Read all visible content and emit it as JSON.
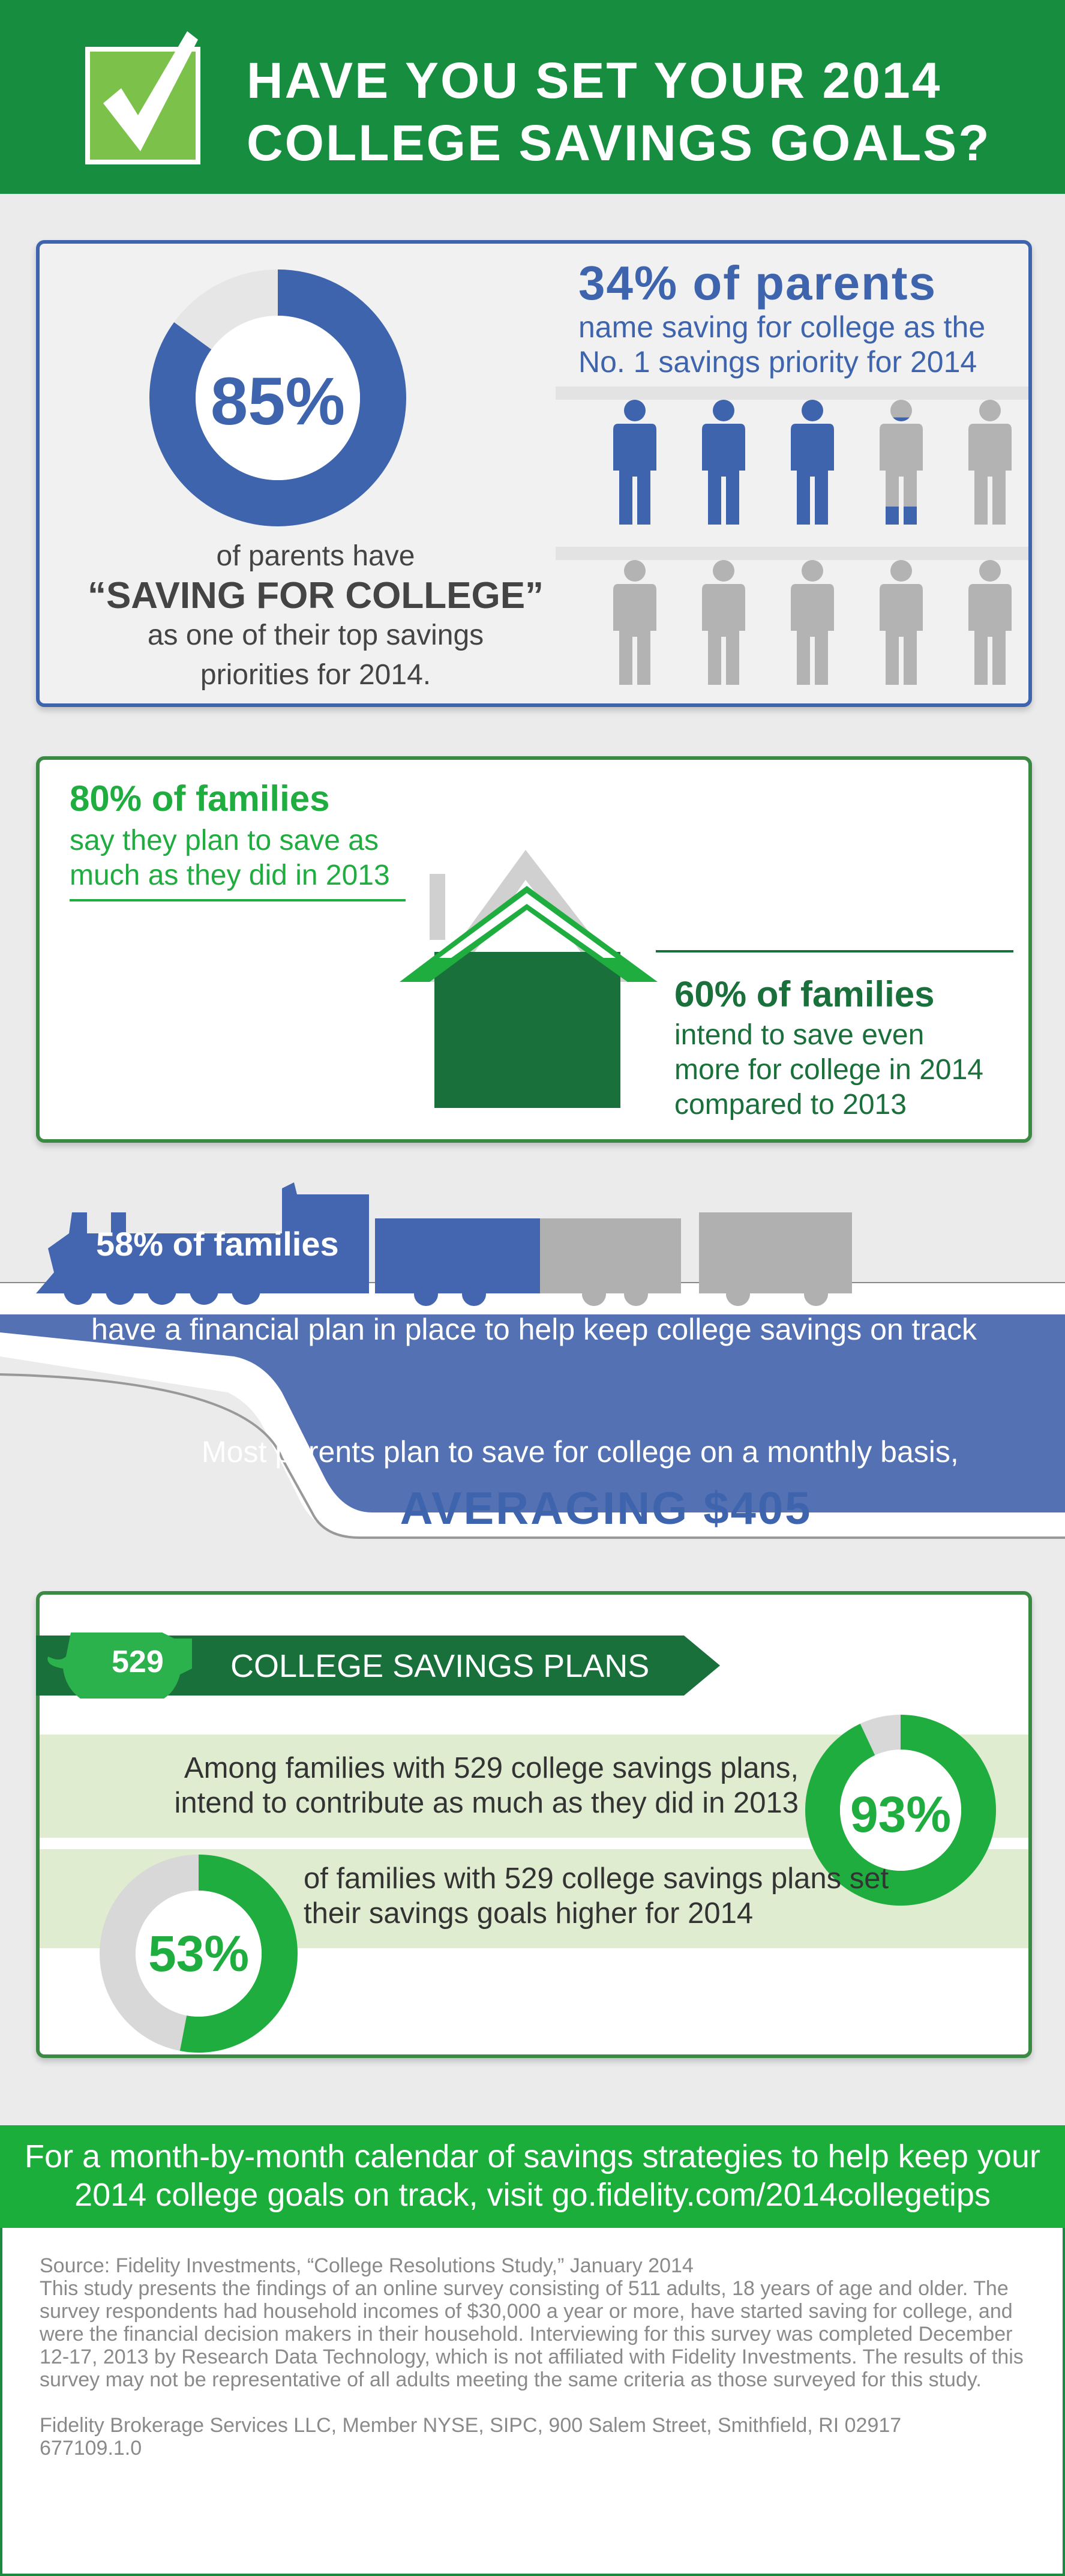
{
  "header": {
    "title_line1": "HAVE YOU SET YOUR 2014",
    "title_line2": "COLLEGE SAVINGS GOALS?",
    "icon": "checkbox-check-icon"
  },
  "colors": {
    "blue": "#3f64ae",
    "green": "#1fad3f",
    "dark_green": "#19703a",
    "header_green": "#168d3f",
    "gray": "#b3b3b3"
  },
  "stat1": {
    "value": "85%",
    "percent": 85,
    "line1": "of parents have",
    "line2": "“SAVING FOR COLLEGE”",
    "line3": "as one of their top savings",
    "line4": "priorities for 2014."
  },
  "stat2": {
    "headline": "34% of parents",
    "line1": "name saving for college as the",
    "line2": "No. 1 savings priority for 2014",
    "figures_total": 10,
    "figures_filled": 3.4
  },
  "stat3": {
    "headline": "80% of families",
    "line1": "say they plan to save as",
    "line2": "much as they did in 2013"
  },
  "stat4": {
    "headline": "60% of families",
    "line1": "intend to save even",
    "line2": "more for college in 2014",
    "line3": "compared to 2013"
  },
  "stat5": {
    "headline": "58% of families",
    "percent": 58,
    "line1": "have a financial plan in place to help keep college savings on track"
  },
  "stat6": {
    "line1": "Most parents plan to save for college on a monthly basis,",
    "highlight": "AVERAGING $405"
  },
  "plans": {
    "badge": "529",
    "title": "COLLEGE SAVINGS PLANS",
    "stat_a": {
      "value": "93%",
      "percent": 93,
      "line1": "Among families with 529 college savings plans,",
      "line2": "intend to contribute as much as they did in 2013"
    },
    "stat_b": {
      "value": "53%",
      "percent": 53,
      "line1": "of families with 529 college savings plans set",
      "line2": "their savings goals higher for 2014"
    }
  },
  "cta": {
    "line1": "For a month-by-month calendar of savings strategies to help keep your",
    "line2": "2014 college goals on track, visit go.fidelity.com/2014collegetips"
  },
  "fine_print": {
    "source": "Source: Fidelity Investments, “College Resolutions Study,” January 2014",
    "body": "This study presents the findings of an online survey consisting of 511 adults, 18 years of age and older. The survey respondents had household incomes of $30,000 a year or more, have started saving for college, and were the financial decision makers in their household. Interviewing for this survey was completed December 12-17, 2013 by Research Data Technology, which is not affiliated with Fidelity Investments. The results of this survey may not be representative of all adults meeting the same criteria as those surveyed for this study.",
    "disclosure": "Fidelity Brokerage Services LLC, Member NYSE, SIPC, 900 Salem Street, Smithfield, RI 02917",
    "code": "677109.1.0"
  }
}
